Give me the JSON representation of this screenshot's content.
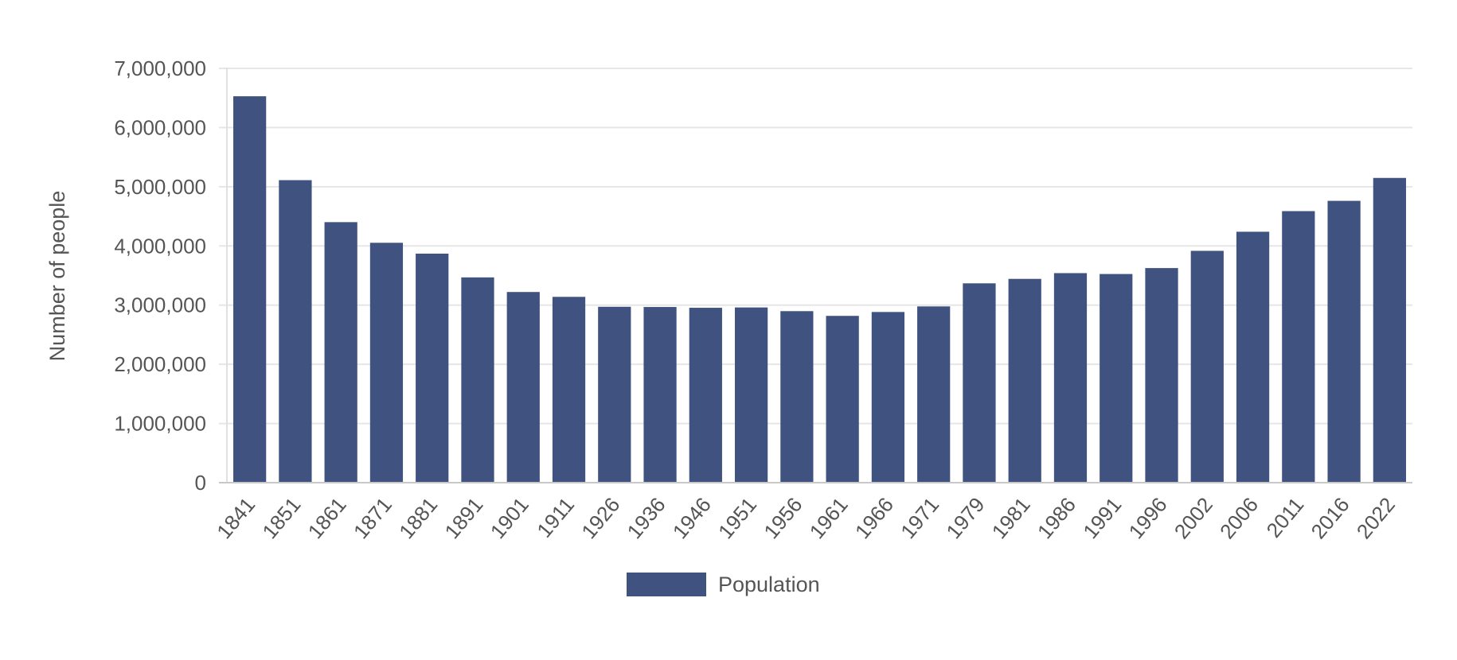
{
  "chart_data": {
    "type": "bar",
    "title": "",
    "xlabel": "",
    "ylabel": "Number of people",
    "ylim": [
      0,
      7000000
    ],
    "yticks": [
      0,
      1000000,
      2000000,
      3000000,
      4000000,
      5000000,
      6000000,
      7000000
    ],
    "ytick_labels": [
      "0",
      "1,000,000",
      "2,000,000",
      "3,000,000",
      "4,000,000",
      "5,000,000",
      "6,000,000",
      "7,000,000"
    ],
    "grid": true,
    "legend": "bottom-center",
    "categories": [
      "1841",
      "1851",
      "1861",
      "1871",
      "1881",
      "1891",
      "1901",
      "1911",
      "1926",
      "1936",
      "1946",
      "1951",
      "1956",
      "1961",
      "1966",
      "1971",
      "1979",
      "1981",
      "1986",
      "1991",
      "1996",
      "2002",
      "2006",
      "2011",
      "2016",
      "2022"
    ],
    "series": [
      {
        "name": "Population",
        "color": "#3f5280",
        "values": [
          6528799,
          5111557,
          4402111,
          4053187,
          3870020,
          3468694,
          3221823,
          3139688,
          2971992,
          2968420,
          2955107,
          2960593,
          2898264,
          2818341,
          2884002,
          2978248,
          3368217,
          3443405,
          3540643,
          3525719,
          3626087,
          3917203,
          4239848,
          4588252,
          4761865,
          5149139
        ]
      }
    ]
  }
}
